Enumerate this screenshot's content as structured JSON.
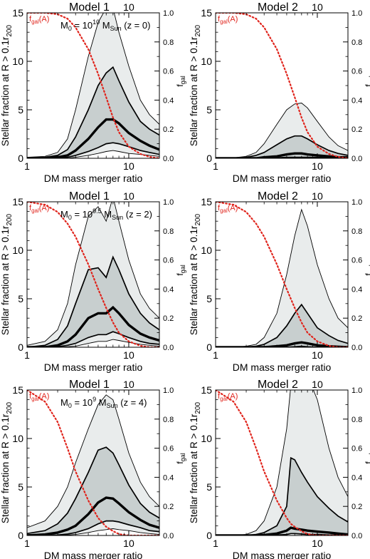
{
  "figure": {
    "xlabel": "DM mass merger ratio",
    "ylabel_left": "Stellar fraction at R > 0.1r",
    "ylabel_left_sub": "200",
    "ylabel_right": "f",
    "ylabel_right_sub": "gal",
    "fgal_label_main": "f",
    "fgal_label_sub": "gal",
    "fgal_label_arg": "(A)",
    "top_tick_label": "10",
    "colors": {
      "outer_band": "#e9ecec",
      "inner_band": "#c8cfcf",
      "lines": "#000000",
      "fgal_curve": "#e0241c",
      "fgal_label": "#e0241c"
    }
  },
  "chart_data": [
    {
      "panel": "row1-left",
      "title": "Model 1",
      "annotation": {
        "prefix": "M",
        "sub": "0",
        "eq": " = 10",
        "exp": "10",
        "unit": " M",
        "unit_sub": "Sun",
        "tail": " (z = 0)"
      },
      "type": "area",
      "xscale": "log",
      "xlim": [
        1,
        20
      ],
      "ylim": [
        0,
        15
      ],
      "y2lim": [
        0,
        1
      ],
      "xticks": [
        1,
        10
      ],
      "yticks": [
        0,
        5,
        10,
        15
      ],
      "y2ticks": [
        "0.0",
        "0.2",
        "0.4",
        "0.6",
        "0.8",
        "1.0"
      ],
      "x": [
        1,
        1.5,
        2,
        2.5,
        3,
        4,
        5,
        6,
        7,
        8,
        10,
        13,
        16,
        20
      ],
      "p90": [
        0.1,
        0.2,
        0.6,
        2.0,
        5.0,
        10.5,
        14.0,
        15.5,
        15.5,
        13.0,
        9.5,
        6.0,
        4.5,
        3.5
      ],
      "p75": [
        0,
        0.1,
        0.3,
        0.9,
        2.2,
        5.0,
        7.5,
        8.8,
        9.4,
        8.0,
        5.8,
        3.8,
        3.0,
        2.4
      ],
      "median": [
        0,
        0,
        0.1,
        0.3,
        0.8,
        2.0,
        3.2,
        4.0,
        4.0,
        3.6,
        2.6,
        1.8,
        1.3,
        0.9
      ],
      "p25": [
        0,
        0,
        0,
        0.1,
        0.3,
        0.7,
        1.1,
        1.5,
        1.6,
        1.5,
        1.2,
        0.8,
        0.6,
        0.4
      ],
      "p10": [
        0,
        0,
        0,
        0,
        0.1,
        0.3,
        0.5,
        0.7,
        0.8,
        0.7,
        0.5,
        0.4,
        0.3,
        0.2
      ],
      "fgal": [
        1.0,
        1.0,
        0.99,
        0.96,
        0.9,
        0.75,
        0.58,
        0.42,
        0.28,
        0.18,
        0.08,
        0.03,
        0.01,
        0.0
      ]
    },
    {
      "panel": "row1-right",
      "title": "Model 2",
      "annotation": null,
      "type": "area",
      "xscale": "log",
      "xlim": [
        1,
        20
      ],
      "ylim": [
        0,
        15
      ],
      "y2lim": [
        0,
        1
      ],
      "xticks": [
        1,
        10
      ],
      "yticks": [
        0,
        5,
        10,
        15
      ],
      "y2ticks": [
        "0.0",
        "0.2",
        "0.4",
        "0.6",
        "0.8",
        "1.0"
      ],
      "x": [
        1,
        1.5,
        2,
        2.5,
        3,
        4,
        5,
        6,
        7,
        8,
        10,
        13,
        16,
        20
      ],
      "p90": [
        0,
        0.05,
        0.2,
        0.6,
        1.5,
        3.5,
        5.0,
        5.6,
        5.7,
        5.2,
        3.8,
        2.2,
        1.3,
        0.8
      ],
      "p75": [
        0,
        0,
        0.1,
        0.3,
        0.6,
        1.4,
        2.0,
        2.3,
        2.3,
        2.0,
        1.4,
        0.8,
        0.5,
        0.3
      ],
      "median": [
        0,
        0,
        0,
        0,
        0.1,
        0.2,
        0.4,
        0.5,
        0.5,
        0.4,
        0.3,
        0.2,
        0.1,
        0.1
      ],
      "p25": [
        0,
        0,
        0,
        0,
        0,
        0.05,
        0.1,
        0.1,
        0.1,
        0.1,
        0.1,
        0.05,
        0,
        0
      ],
      "p10": [
        0,
        0,
        0,
        0,
        0,
        0,
        0,
        0,
        0,
        0,
        0,
        0,
        0,
        0
      ],
      "fgal": [
        1.0,
        1.0,
        0.99,
        0.96,
        0.9,
        0.75,
        0.58,
        0.42,
        0.28,
        0.18,
        0.08,
        0.03,
        0.01,
        0.0
      ]
    },
    {
      "panel": "row2-left",
      "title": "Model 1",
      "annotation": {
        "prefix": "M",
        "sub": "0",
        "eq": " = 10",
        "exp": "9.5",
        "unit": " M",
        "unit_sub": "Sun",
        "tail": " (z = 2)"
      },
      "type": "area",
      "xscale": "log",
      "xlim": [
        1,
        20
      ],
      "ylim": [
        0,
        15
      ],
      "y2lim": [
        0,
        1
      ],
      "xticks": [
        1,
        10
      ],
      "yticks": [
        0,
        5,
        10,
        15
      ],
      "y2ticks": [
        "0.0",
        "0.2",
        "0.4",
        "0.6",
        "0.8",
        "1.0"
      ],
      "x": [
        1,
        1.5,
        2,
        2.5,
        3,
        4,
        5,
        6,
        7,
        8,
        10,
        13,
        16,
        20
      ],
      "p90": [
        0.2,
        0.6,
        1.8,
        4.5,
        8.5,
        13.5,
        14.5,
        13.0,
        15.5,
        13.0,
        9.0,
        5.5,
        4.0,
        3.0
      ],
      "p75": [
        0,
        0.2,
        0.8,
        2.2,
        4.5,
        8.0,
        8.2,
        7.2,
        9.3,
        8.0,
        5.5,
        3.5,
        2.5,
        1.8
      ],
      "median": [
        0,
        0,
        0.2,
        0.6,
        1.3,
        3.0,
        3.5,
        3.5,
        4.1,
        3.5,
        2.3,
        1.4,
        1.0,
        0.7
      ],
      "p25": [
        0,
        0,
        0.05,
        0.2,
        0.4,
        1.0,
        1.3,
        1.3,
        1.6,
        1.4,
        1.0,
        0.6,
        0.4,
        0.3
      ],
      "p10": [
        0,
        0,
        0,
        0.05,
        0.1,
        0.4,
        0.6,
        0.6,
        0.8,
        0.7,
        0.5,
        0.3,
        0.2,
        0.1
      ],
      "fgal": [
        1.0,
        0.98,
        0.93,
        0.85,
        0.76,
        0.57,
        0.4,
        0.27,
        0.17,
        0.1,
        0.04,
        0.01,
        0.0,
        0.0
      ]
    },
    {
      "panel": "row2-right",
      "title": "Model 2",
      "annotation": null,
      "type": "area",
      "xscale": "log",
      "xlim": [
        1,
        20
      ],
      "ylim": [
        0,
        15
      ],
      "y2lim": [
        0,
        1
      ],
      "xticks": [
        1,
        10
      ],
      "yticks": [
        0,
        5,
        10,
        15
      ],
      "y2ticks": [
        "0.0",
        "0.2",
        "0.4",
        "0.6",
        "0.8",
        "1.0"
      ],
      "x": [
        1,
        1.5,
        2,
        2.5,
        3,
        4,
        5,
        6,
        7,
        8,
        10,
        13,
        16,
        20
      ],
      "p90": [
        0,
        0,
        0.1,
        0.3,
        1.0,
        3.5,
        7.5,
        11.5,
        14.2,
        12.5,
        8.5,
        5.0,
        3.0,
        2.0
      ],
      "p75": [
        0,
        0,
        0,
        0.1,
        0.3,
        1.0,
        2.2,
        3.5,
        4.4,
        3.5,
        2.0,
        1.2,
        0.7,
        0.4
      ],
      "median": [
        0,
        0,
        0,
        0,
        0,
        0.1,
        0.2,
        0.4,
        0.5,
        0.4,
        0.2,
        0.1,
        0.05,
        0
      ],
      "p25": [
        0,
        0,
        0,
        0,
        0,
        0,
        0,
        0.05,
        0.1,
        0.05,
        0,
        0,
        0,
        0
      ],
      "p10": [
        0,
        0,
        0,
        0,
        0,
        0,
        0,
        0,
        0,
        0,
        0,
        0,
        0,
        0
      ],
      "fgal": [
        1.0,
        0.98,
        0.93,
        0.85,
        0.76,
        0.57,
        0.4,
        0.27,
        0.17,
        0.1,
        0.04,
        0.01,
        0.0,
        0.0
      ]
    },
    {
      "panel": "row3-left",
      "title": "Model 1",
      "annotation": {
        "prefix": "M",
        "sub": "0",
        "eq": " = 10",
        "exp": "9",
        "unit": " M",
        "unit_sub": "Sun",
        "tail": " (z = 4)"
      },
      "type": "area",
      "xscale": "log",
      "xlim": [
        1,
        20
      ],
      "ylim": [
        0,
        15
      ],
      "y2lim": [
        0,
        1
      ],
      "xticks": [
        1,
        10
      ],
      "yticks": [
        0,
        5,
        10,
        15
      ],
      "y2ticks": [
        "0.0",
        "0.2",
        "0.4",
        "0.6",
        "0.8",
        "1.0"
      ],
      "x": [
        1,
        1.5,
        2,
        2.5,
        3,
        4,
        5,
        6,
        7,
        8,
        10,
        13,
        16,
        20
      ],
      "p90": [
        0.8,
        1.5,
        3.0,
        5.0,
        7.5,
        11.0,
        13.5,
        14.5,
        14.0,
        12.0,
        8.5,
        5.5,
        4.0,
        3.0
      ],
      "p75": [
        0.2,
        0.5,
        1.2,
        2.3,
        3.8,
        6.5,
        8.8,
        9.1,
        8.5,
        7.3,
        5.2,
        3.3,
        2.4,
        1.8
      ],
      "median": [
        0,
        0.1,
        0.3,
        0.6,
        1.0,
        2.2,
        3.4,
        3.9,
        3.8,
        3.3,
        2.4,
        1.6,
        1.1,
        0.8
      ],
      "p25": [
        0,
        0,
        0.05,
        0.15,
        0.3,
        0.7,
        1.2,
        1.5,
        1.5,
        1.4,
        1.1,
        0.8,
        0.5,
        0.4
      ],
      "p10": [
        0,
        0,
        0,
        0.05,
        0.1,
        0.3,
        0.5,
        0.6,
        0.7,
        0.6,
        0.5,
        0.3,
        0.2,
        0.1
      ],
      "fgal": [
        1.0,
        0.92,
        0.78,
        0.6,
        0.44,
        0.24,
        0.12,
        0.06,
        0.03,
        0.01,
        0.0,
        0.0,
        0.0,
        0.0
      ]
    },
    {
      "panel": "row3-right",
      "title": "Model 2",
      "annotation": null,
      "type": "area",
      "xscale": "log",
      "xlim": [
        1,
        20
      ],
      "ylim": [
        0,
        15
      ],
      "y2lim": [
        0,
        1
      ],
      "xticks": [
        1,
        10
      ],
      "yticks": [
        0,
        5,
        10,
        15
      ],
      "y2ticks": [
        "0.0",
        "0.2",
        "0.4",
        "0.6",
        "0.8",
        "1.0"
      ],
      "x": [
        1,
        1.5,
        2,
        2.5,
        3,
        4,
        5,
        5.5,
        6,
        7,
        8,
        10,
        13,
        16,
        20
      ],
      "p90": [
        0,
        0,
        0.1,
        0.5,
        1.5,
        5.0,
        11.0,
        15.5,
        17.0,
        17.0,
        16.5,
        14.0,
        9.0,
        6.0,
        4.0
      ],
      "p75": [
        0,
        0,
        0,
        0.1,
        0.3,
        1.0,
        3.0,
        8.0,
        7.8,
        6.5,
        5.5,
        4.0,
        2.8,
        2.0,
        1.4
      ],
      "median": [
        0,
        0,
        0,
        0,
        0.05,
        0.2,
        0.5,
        0.8,
        0.7,
        0.6,
        0.5,
        0.4,
        0.3,
        0.2,
        0.1
      ],
      "p25": [
        0,
        0,
        0,
        0,
        0,
        0.05,
        0.1,
        0.2,
        0.2,
        0.15,
        0.1,
        0.1,
        0.05,
        0.05,
        0
      ],
      "p10": [
        0,
        0,
        0,
        0,
        0,
        0,
        0,
        0,
        0,
        0,
        0,
        0,
        0,
        0,
        0
      ],
      "fgal": [
        1.0,
        0.92,
        0.78,
        0.6,
        0.44,
        0.24,
        0.12,
        0.08,
        0.06,
        0.03,
        0.01,
        0.0,
        0.0,
        0.0,
        0.0
      ]
    }
  ]
}
